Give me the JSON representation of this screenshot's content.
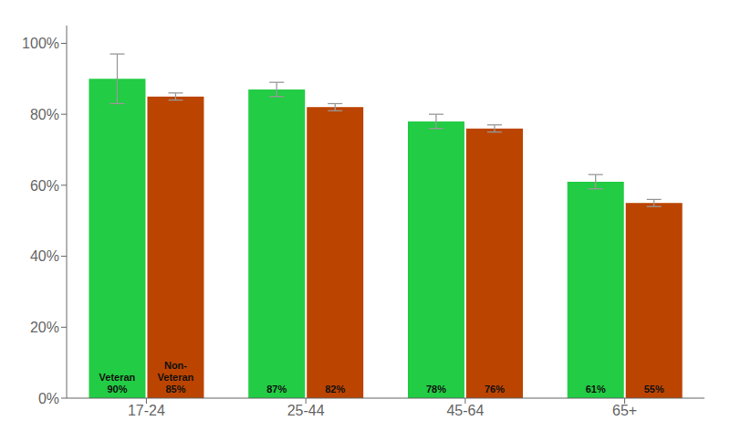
{
  "chart_data": {
    "type": "bar",
    "categories": [
      "17-24",
      "25-44",
      "45-64",
      "65+"
    ],
    "series": [
      {
        "color": "#22CC44",
        "values": [
          90,
          87,
          78,
          61
        ],
        "value_labels": [
          "Veteran\n90%",
          "87%",
          "78%",
          "61%"
        ],
        "errors": [
          7,
          2,
          2,
          2
        ]
      },
      {
        "color": "#BB4400",
        "values": [
          85,
          82,
          76,
          55
        ],
        "value_labels": [
          "Non-\nVeteran\n85%",
          "82%",
          "76%",
          "55%"
        ],
        "errors": [
          1,
          1,
          1,
          1
        ]
      }
    ],
    "ylim": [
      0,
      105
    ],
    "yticks": [
      {
        "value": 0,
        "label": "0%"
      },
      {
        "value": 20,
        "label": "20%"
      },
      {
        "value": 40,
        "label": "40%"
      },
      {
        "value": 60,
        "label": "60%"
      },
      {
        "value": 80,
        "label": "80%"
      },
      {
        "value": 100,
        "label": "100%"
      }
    ],
    "grid": false,
    "data_labels": true
  }
}
